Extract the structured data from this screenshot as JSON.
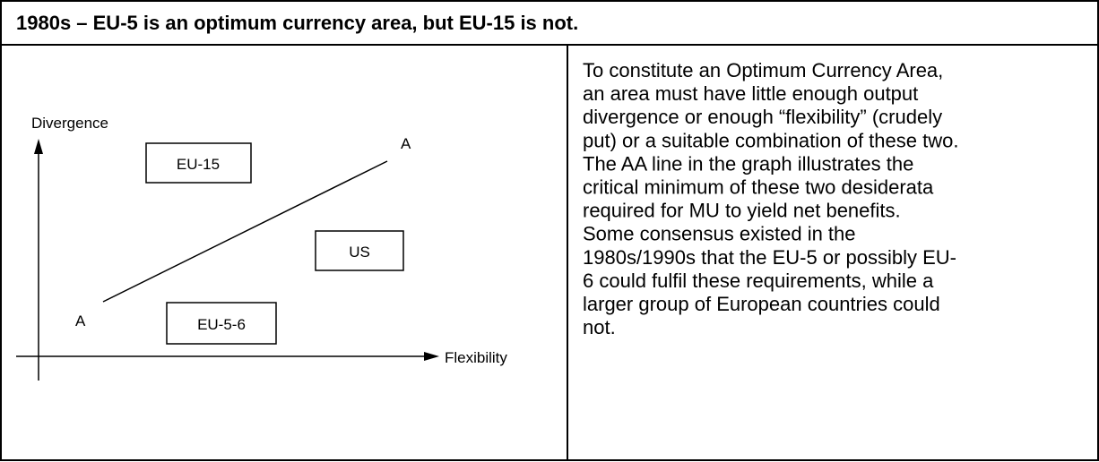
{
  "header": {
    "title": "1980s – EU-5 is an optimum currency area, but EU-15 is not."
  },
  "diagram": {
    "y_axis_label": "Divergence",
    "x_axis_label": "Flexibility",
    "line_end_labels": [
      "A",
      "A"
    ],
    "boxes": [
      "EU-15",
      "US",
      "EU-5-6"
    ]
  },
  "text": {
    "lines": [
      "To constitute an Optimum Currency Area,",
      "an area must have little enough output",
      "divergence or enough “flexibility” (crudely",
      "put) or a suitable combination of these two.",
      "The AA line in the graph illustrates the",
      "critical minimum of these two desiderata",
      "required for MU to yield net benefits.",
      "Some consensus existed in the",
      "1980s/1990s that the EU-5 or possibly EU-",
      "6 could fulfil these requirements, while a",
      "larger group of European countries could",
      "not."
    ]
  }
}
